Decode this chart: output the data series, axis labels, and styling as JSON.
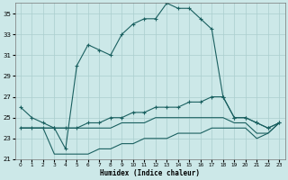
{
  "xlabel": "Humidex (Indice chaleur)",
  "background_color": "#cce8e8",
  "grid_color": "#aacece",
  "line_color": "#1a6060",
  "xlim": [
    -0.5,
    23.5
  ],
  "ylim": [
    21,
    36
  ],
  "yticks": [
    21,
    23,
    25,
    27,
    29,
    31,
    33,
    35
  ],
  "xticks": [
    0,
    1,
    2,
    3,
    4,
    5,
    6,
    7,
    8,
    9,
    10,
    11,
    12,
    13,
    14,
    15,
    16,
    17,
    18,
    19,
    20,
    21,
    22,
    23
  ],
  "series1_x": [
    0,
    1,
    2,
    3,
    4,
    5,
    6,
    7,
    8,
    9,
    10,
    11,
    12,
    13,
    14,
    15,
    16,
    17,
    18,
    19,
    20,
    21,
    22,
    23
  ],
  "series1_y": [
    26.0,
    25.0,
    24.5,
    24.0,
    22.0,
    30.0,
    32.0,
    31.5,
    31.0,
    33.0,
    34.0,
    34.5,
    34.5,
    36.0,
    35.5,
    35.5,
    34.5,
    33.5,
    27.0,
    25.0,
    25.0,
    24.5,
    24.0,
    24.5
  ],
  "series2_x": [
    0,
    1,
    2,
    3,
    4,
    5,
    6,
    7,
    8,
    9,
    10,
    11,
    12,
    13,
    14,
    15,
    16,
    17,
    18,
    19,
    20,
    21,
    22,
    23
  ],
  "series2_y": [
    24.0,
    24.0,
    24.0,
    24.0,
    24.0,
    24.0,
    24.5,
    24.5,
    25.0,
    25.0,
    25.5,
    25.5,
    26.0,
    26.0,
    26.0,
    26.5,
    26.5,
    27.0,
    27.0,
    25.0,
    25.0,
    24.5,
    24.0,
    24.5
  ],
  "series3_x": [
    0,
    1,
    2,
    3,
    4,
    5,
    6,
    7,
    8,
    9,
    10,
    11,
    12,
    13,
    14,
    15,
    16,
    17,
    18,
    19,
    20,
    21,
    22,
    23
  ],
  "series3_y": [
    24.0,
    24.0,
    24.0,
    24.0,
    24.0,
    24.0,
    24.0,
    24.0,
    24.0,
    24.5,
    24.5,
    24.5,
    25.0,
    25.0,
    25.0,
    25.0,
    25.0,
    25.0,
    25.0,
    24.5,
    24.5,
    23.5,
    23.5,
    24.5
  ],
  "series4_x": [
    0,
    1,
    2,
    3,
    4,
    5,
    6,
    7,
    8,
    9,
    10,
    11,
    12,
    13,
    14,
    15,
    16,
    17,
    18,
    19,
    20,
    21,
    22,
    23
  ],
  "series4_y": [
    24.0,
    24.0,
    24.0,
    21.5,
    21.5,
    21.5,
    21.5,
    22.0,
    22.0,
    22.5,
    22.5,
    23.0,
    23.0,
    23.0,
    23.5,
    23.5,
    23.5,
    24.0,
    24.0,
    24.0,
    24.0,
    23.0,
    23.5,
    24.5
  ]
}
